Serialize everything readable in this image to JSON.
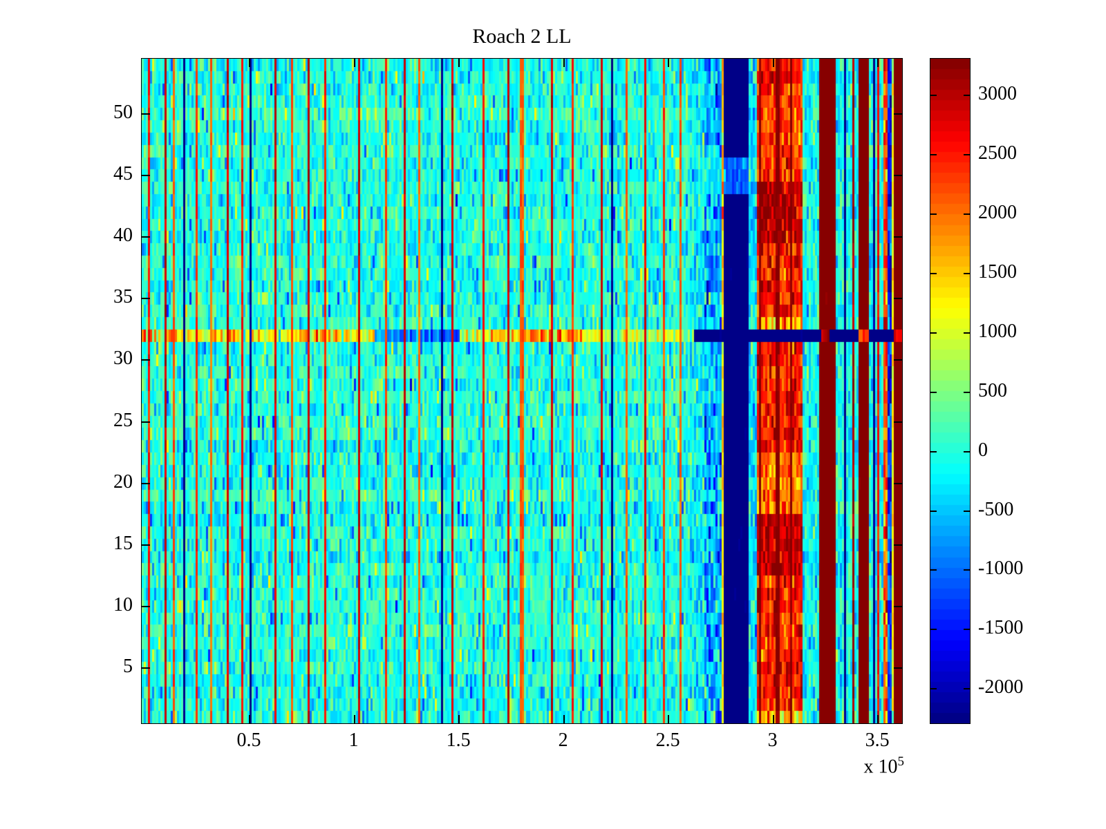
{
  "chart_data": {
    "type": "heatmap",
    "title": "Roach 2 LL",
    "colormap": "jet",
    "x_axis": {
      "tick_labels": [
        "0.5",
        "1",
        "1.5",
        "2",
        "2.5",
        "3",
        "3.5"
      ],
      "tick_values": [
        0.5,
        1.0,
        1.5,
        2.0,
        2.5,
        3.0,
        3.5
      ],
      "lim": [
        -0.015,
        3.615
      ],
      "scale_label": "x 10",
      "scale_exponent": "5"
    },
    "y_axis": {
      "tick_labels": [
        "5",
        "10",
        "15",
        "20",
        "25",
        "30",
        "35",
        "40",
        "45",
        "50"
      ],
      "tick_values": [
        5,
        10,
        15,
        20,
        25,
        30,
        35,
        40,
        45,
        50
      ],
      "lim": [
        0.5,
        54.5
      ]
    },
    "colorbar": {
      "tick_labels": [
        "3000",
        "2500",
        "2000",
        "1500",
        "1000",
        "500",
        "0",
        "-500",
        "-1000",
        "-1500",
        "-2000"
      ],
      "tick_values": [
        3000,
        2500,
        2000,
        1500,
        1000,
        500,
        0,
        -500,
        -1000,
        -1500,
        -2000
      ],
      "vmin": -2290,
      "vmax": 3310,
      "n_colors": 64
    },
    "grid": {
      "n_cols": 366,
      "n_rows": 54,
      "seed": 1337,
      "spike_halfwidth": 0.0052,
      "base": {
        "mean": 0,
        "std": 290,
        "row_offset_std": 70,
        "neg_tail_p": 0.07,
        "pos_tail_p": 0.05
      }
    },
    "regions": [
      {
        "x0": 2.6,
        "x1": 2.675,
        "mean": -200,
        "std": 360
      },
      {
        "x0": 2.675,
        "x1": 2.752,
        "mean": -650,
        "std": 520
      },
      {
        "x0": 2.675,
        "x1": 2.752,
        "mean": -250,
        "std": 340,
        "rows": [
          44,
          46
        ]
      },
      {
        "x0": 2.752,
        "x1": 2.762,
        "mean": 1500,
        "std": 350
      },
      {
        "x0": 2.762,
        "x1": 2.885,
        "mean": -2290,
        "std": 40
      },
      {
        "x0": 2.762,
        "x1": 2.885,
        "mean": -1050,
        "std": 230,
        "rows": [
          44,
          46
        ]
      },
      {
        "x0": 2.885,
        "x1": 2.92,
        "mean": -350,
        "std": 380
      },
      {
        "x0": 2.92,
        "x1": 3.14,
        "band": true,
        "std": 380
      },
      {
        "x0": 3.14,
        "x1": 3.215,
        "mean": -150,
        "std": 350
      },
      {
        "x0": 3.215,
        "x1": 3.3,
        "mean": 3310,
        "std": 30
      },
      {
        "x0": 3.3,
        "x1": 3.408,
        "mean": -100,
        "std": 350
      },
      {
        "x0": 3.408,
        "x1": 3.452,
        "mean": 3310,
        "std": 30
      },
      {
        "x0": 3.452,
        "x1": 3.525,
        "mean": -100,
        "std": 350
      },
      {
        "x0": 3.525,
        "x1": 3.545,
        "mean": 2100,
        "std": 450
      },
      {
        "x0": 3.545,
        "x1": 3.565,
        "mean": -1400,
        "std": 420
      },
      {
        "x0": 3.565,
        "x1": 3.573,
        "mean": 1150,
        "std": 250
      },
      {
        "x0": 3.573,
        "x1": 3.615,
        "mean": 3310,
        "std": 30
      }
    ],
    "band_profile": [
      [
        1,
        1,
        1500
      ],
      [
        2,
        12,
        2430
      ],
      [
        13,
        17,
        2950
      ],
      [
        18,
        22,
        1950
      ],
      [
        23,
        31,
        2480
      ],
      [
        32,
        32,
        2480
      ],
      [
        33,
        33,
        1600
      ],
      [
        34,
        39,
        2380
      ],
      [
        40,
        44,
        2980
      ],
      [
        45,
        52,
        2300
      ],
      [
        53,
        54,
        2520
      ]
    ],
    "spikes": [
      {
        "x": 0.022,
        "v": 2500
      },
      {
        "x": 0.095,
        "v": 2900
      },
      {
        "x": 0.135,
        "v": 2100
      },
      {
        "x": 0.187,
        "v": -2290
      },
      {
        "x": 0.247,
        "v": 2400
      },
      {
        "x": 0.315,
        "v": 2000
      },
      {
        "x": 0.392,
        "v": 2850
      },
      {
        "x": 0.47,
        "v": 2500
      },
      {
        "x": 0.51,
        "v": -2290
      },
      {
        "x": 0.622,
        "v": 2850
      },
      {
        "x": 0.7,
        "v": 2200
      },
      {
        "x": 0.787,
        "v": 2900
      },
      {
        "x": 0.866,
        "v": 2500
      },
      {
        "x": 1.017,
        "v": 2850
      },
      {
        "x": 1.155,
        "v": 2300
      },
      {
        "x": 1.24,
        "v": 2850
      },
      {
        "x": 1.31,
        "v": 2000
      },
      {
        "x": 1.418,
        "v": -2290
      },
      {
        "x": 1.468,
        "v": 2850
      },
      {
        "x": 1.617,
        "v": 2500
      },
      {
        "x": 1.738,
        "v": 2900
      },
      {
        "x": 1.8,
        "v": 2100
      },
      {
        "x": 1.945,
        "v": 2850
      },
      {
        "x": 2.044,
        "v": 2400
      },
      {
        "x": 2.182,
        "v": 2850
      },
      {
        "x": 2.23,
        "v": -2290
      },
      {
        "x": 2.3,
        "v": 2050
      },
      {
        "x": 2.39,
        "v": 2700
      },
      {
        "x": 2.475,
        "v": 2350
      },
      {
        "x": 2.555,
        "v": 2100
      },
      {
        "x": 2.935,
        "v": 3300
      },
      {
        "x": 3.02,
        "v": 3300
      },
      {
        "x": 3.085,
        "v": 3300
      },
      {
        "x": 3.345,
        "v": -2290
      },
      {
        "x": 3.385,
        "v": 3100
      },
      {
        "x": 3.48,
        "v": -2290
      },
      {
        "x": 3.5,
        "v": 2600
      }
    ],
    "row32_segments": [
      {
        "x0": -0.02,
        "x1": 1.1,
        "mean": 1250,
        "std": 620
      },
      {
        "x0": 1.1,
        "x1": 1.5,
        "mean": -750,
        "std": 520
      },
      {
        "x0": 1.5,
        "x1": 1.65,
        "mean": 900,
        "std": 520
      },
      {
        "x0": 1.65,
        "x1": 2.1,
        "mean": 1650,
        "std": 520
      },
      {
        "x0": 2.1,
        "x1": 2.62,
        "mean": 950,
        "std": 500
      },
      {
        "x0": 2.62,
        "x1": 3.225,
        "mean": -2290,
        "std": 50
      },
      {
        "x0": 3.225,
        "x1": 3.272,
        "mean": 2800,
        "std": 350
      },
      {
        "x0": 3.272,
        "x1": 3.408,
        "mean": -2290,
        "std": 50
      },
      {
        "x0": 3.408,
        "x1": 3.455,
        "mean": 2300,
        "std": 300
      },
      {
        "x0": 3.455,
        "x1": 3.572,
        "mean": -2290,
        "std": 50
      },
      {
        "x0": 3.572,
        "x1": 3.615,
        "mean": 2600,
        "std": 300
      }
    ],
    "row32_spike_xmax": 2.6
  }
}
